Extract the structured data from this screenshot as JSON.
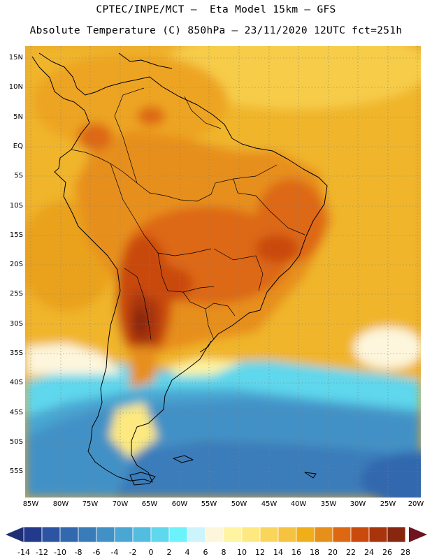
{
  "header": {
    "line1": "CPTEC/INPE/MCT –  Eta Model 15km – GFS",
    "line2": "Absolute Temperature (C) 850hPa – 23/11/2020 12UTC fct=251h"
  },
  "map": {
    "lon_range": [
      -86,
      -19.5
    ],
    "lat_range": [
      -59.5,
      17
    ],
    "lat_ticks": [
      {
        "lat": 15,
        "label": "15N"
      },
      {
        "lat": 10,
        "label": "10N"
      },
      {
        "lat": 5,
        "label": "5N"
      },
      {
        "lat": 0,
        "label": "EQ"
      },
      {
        "lat": -5,
        "label": "5S"
      },
      {
        "lat": -10,
        "label": "10S"
      },
      {
        "lat": -15,
        "label": "15S"
      },
      {
        "lat": -20,
        "label": "20S"
      },
      {
        "lat": -25,
        "label": "25S"
      },
      {
        "lat": -30,
        "label": "30S"
      },
      {
        "lat": -35,
        "label": "35S"
      },
      {
        "lat": -40,
        "label": "40S"
      },
      {
        "lat": -45,
        "label": "45S"
      },
      {
        "lat": -50,
        "label": "50S"
      },
      {
        "lat": -55,
        "label": "55S"
      }
    ],
    "lon_ticks": [
      {
        "lon": -85,
        "label": "85W"
      },
      {
        "lon": -80,
        "label": "80W"
      },
      {
        "lon": -75,
        "label": "75W"
      },
      {
        "lon": -70,
        "label": "70W"
      },
      {
        "lon": -65,
        "label": "65W"
      },
      {
        "lon": -60,
        "label": "60W"
      },
      {
        "lon": -55,
        "label": "55W"
      },
      {
        "lon": -50,
        "label": "50W"
      },
      {
        "lon": -45,
        "label": "45W"
      },
      {
        "lon": -40,
        "label": "40W"
      },
      {
        "lon": -35,
        "label": "35W"
      },
      {
        "lon": -30,
        "label": "30W"
      },
      {
        "lon": -25,
        "label": "25W"
      },
      {
        "lon": -20,
        "label": "20W"
      }
    ]
  },
  "colorbar": {
    "labels": [
      "-14",
      "-12",
      "-10",
      "-8",
      "-6",
      "-4",
      "-2",
      "0",
      "2",
      "4",
      "6",
      "8",
      "10",
      "12",
      "14",
      "16",
      "18",
      "20",
      "22",
      "24",
      "26",
      "28"
    ],
    "colors": [
      "#233a8c",
      "#2d54a2",
      "#3268ae",
      "#3a7cba",
      "#4291c6",
      "#4aa6d2",
      "#53bddf",
      "#5fd7ec",
      "#6cf2fb",
      "#cdf3fc",
      "#fdf6dc",
      "#fef4a2",
      "#fde97f",
      "#fad55c",
      "#f6c340",
      "#f0ae19",
      "#e78f1b",
      "#dd6712",
      "#c94a0c",
      "#a8340c",
      "#872710"
    ],
    "under_color": "#1f2f74",
    "over_color": "#6e1420"
  }
}
